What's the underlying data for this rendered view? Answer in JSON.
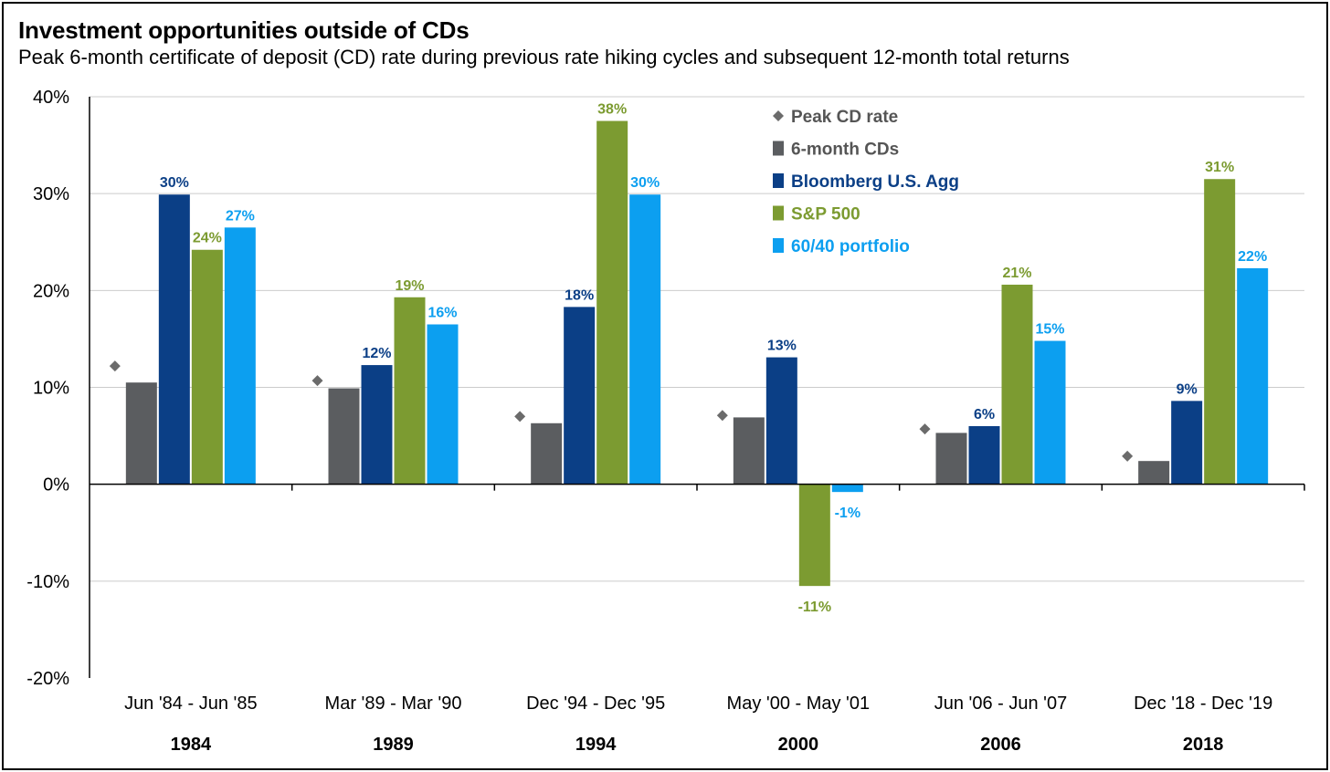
{
  "title": "Investment opportunities outside of CDs",
  "subtitle": "Peak 6-month certificate of deposit (CD) rate during previous rate hiking cycles and subsequent 12-month total returns",
  "colors": {
    "peak_cd": "#6b6b6b",
    "cd": "#5b5d60",
    "agg": "#0b3f86",
    "sp500": "#7c9b31",
    "portfolio": "#0c9ff0",
    "grid": "#cccccc",
    "axis": "#000000"
  },
  "chart_data": {
    "type": "bar",
    "title": "Investment opportunities outside of CDs",
    "subtitle": "Peak 6-month certificate of deposit (CD) rate during previous rate hiking cycles and subsequent 12-month total returns",
    "xlabel": "",
    "ylabel": "",
    "ylim": [
      -20,
      40
    ],
    "yticks": [
      -20,
      -10,
      0,
      10,
      20,
      30,
      40
    ],
    "ytick_labels": [
      "-20%",
      "-10%",
      "0%",
      "10%",
      "20%",
      "30%",
      "40%"
    ],
    "grid": true,
    "legend_position": "top-right",
    "categories": [
      "Jun '84 - Jun '85",
      "Mar '89 - Mar '90",
      "Dec '94 - Dec '95",
      "May '00 - May '01",
      "Jun '06 - Jun '07",
      "Dec '18 - Dec '19"
    ],
    "years": [
      "1984",
      "1989",
      "1994",
      "2000",
      "2006",
      "2018"
    ],
    "peak_cd_rate": {
      "name": "Peak CD rate",
      "values": [
        12.2,
        10.7,
        7.0,
        7.1,
        5.7,
        2.9
      ]
    },
    "series": [
      {
        "name": "6-month CDs",
        "key": "cd",
        "values": [
          10.5,
          9.9,
          6.3,
          6.9,
          5.3,
          2.4
        ],
        "labels": [
          "",
          "",
          "",
          "",
          "",
          ""
        ]
      },
      {
        "name": "Bloomberg U.S. Agg",
        "key": "agg",
        "values": [
          29.9,
          12.3,
          18.3,
          13.1,
          6.0,
          8.6
        ],
        "labels": [
          "30%",
          "12%",
          "18%",
          "13%",
          "6%",
          "9%"
        ]
      },
      {
        "name": "S&P 500",
        "key": "sp500",
        "values": [
          24.2,
          19.3,
          37.5,
          -10.5,
          20.6,
          31.5
        ],
        "labels": [
          "24%",
          "19%",
          "38%",
          "-11%",
          "21%",
          "31%"
        ]
      },
      {
        "name": "60/40 portfolio",
        "key": "portfolio",
        "values": [
          26.5,
          16.5,
          29.9,
          -0.8,
          14.8,
          22.3
        ],
        "labels": [
          "27%",
          "16%",
          "30%",
          "-1%",
          "15%",
          "22%"
        ]
      }
    ]
  }
}
